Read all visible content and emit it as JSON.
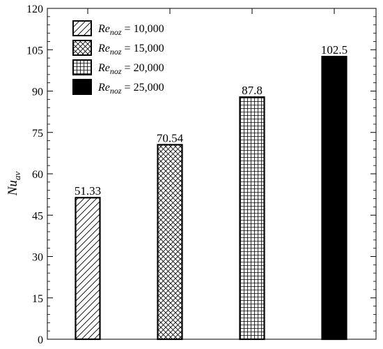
{
  "chart_data": {
    "type": "bar",
    "categories": [
      "Re_noz = 10,000",
      "Re_noz = 15,000",
      "Re_noz = 20,000",
      "Re_noz = 25,000"
    ],
    "values": [
      51.33,
      70.54,
      87.8,
      102.5
    ],
    "data_labels": [
      "51.33",
      "70.54",
      "87.8",
      "102.5"
    ],
    "patterns": [
      "diagonal-hatch",
      "crosshatch-diagonal",
      "grid",
      "solid-black"
    ],
    "ylabel": {
      "main": "Nu",
      "sub": "av"
    },
    "ylim": [
      0,
      120
    ],
    "yticks": [
      0,
      15,
      30,
      45,
      60,
      75,
      90,
      105,
      120
    ],
    "grid": false,
    "legend": {
      "placement": "top-left",
      "entries": [
        {
          "main": "Re",
          "sub": "noz",
          "rest": " = 10,000"
        },
        {
          "main": "Re",
          "sub": "noz",
          "rest": " = 15,000"
        },
        {
          "main": "Re",
          "sub": "noz",
          "rest": " = 20,000"
        },
        {
          "main": "Re",
          "sub": "noz",
          "rest": " = 25,000"
        }
      ]
    }
  }
}
